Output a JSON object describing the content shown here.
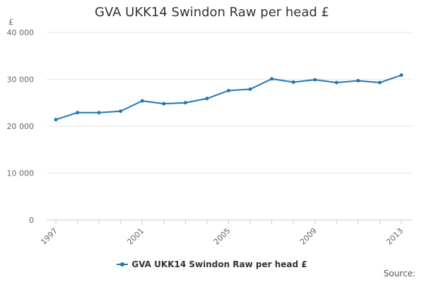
{
  "chart_data": {
    "type": "line",
    "title": "GVA UKK14 Swindon Raw per head £",
    "ylabel": "£",
    "xlabel": "",
    "x": [
      1997,
      1998,
      1999,
      2000,
      2001,
      2002,
      2003,
      2004,
      2005,
      2006,
      2007,
      2008,
      2009,
      2010,
      2011,
      2012,
      2013
    ],
    "x_tick_labels": [
      "1997",
      "2001",
      "2005",
      "2009",
      "2013"
    ],
    "x_tick_values": [
      1997,
      2001,
      2005,
      2009,
      2013
    ],
    "y_tick_labels": [
      "0",
      "10 000",
      "20 000",
      "30 000",
      "40 000"
    ],
    "y_tick_values": [
      0,
      10000,
      20000,
      30000,
      40000
    ],
    "ylim": [
      0,
      40000
    ],
    "xlim": [
      1997,
      2013
    ],
    "grid": true,
    "legend_position": "bottom",
    "series": [
      {
        "name": "GVA UKK14 Swindon Raw per head £",
        "color": "#1f77b4",
        "values": [
          21400,
          22900,
          22900,
          23200,
          25400,
          24800,
          25000,
          25900,
          27600,
          27900,
          30100,
          29400,
          29900,
          29300,
          29700,
          29300,
          30900
        ]
      }
    ]
  },
  "source_label": "Source:"
}
